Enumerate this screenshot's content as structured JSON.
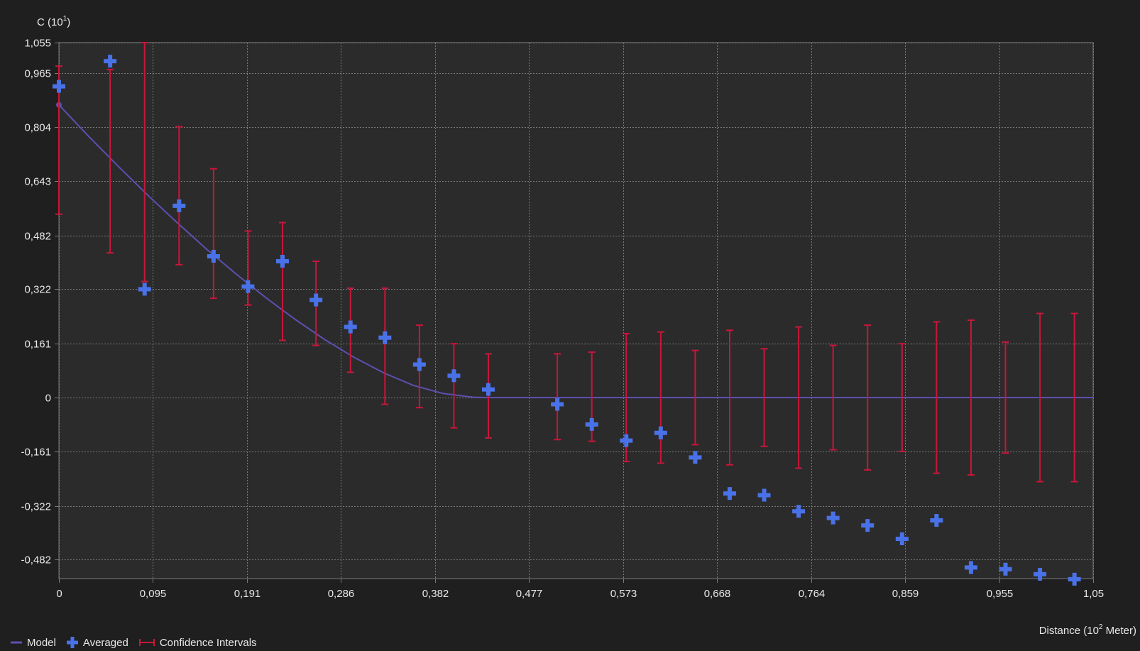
{
  "colors": {
    "background": "#1f1f1f",
    "plot_background": "#2b2b2b",
    "grid": "#7a7a7a",
    "model": "#5d4fb0",
    "averaged": "#4a72e8",
    "confidence": "#c8163a",
    "text": "#e8e8e8"
  },
  "legend": {
    "model": "Model",
    "averaged": "Averaged",
    "confidence": "Confidence Intervals"
  },
  "chart_data": {
    "type": "scatter",
    "ylabel_base": "C (10",
    "ylabel_exp": "1",
    "ylabel_end": ")",
    "xlabel_base": "Distance (10",
    "xlabel_exp": "2",
    "xlabel_end": " Meter)",
    "xlim": [
      0,
      1.05
    ],
    "ylim": [
      -0.54,
      1.055
    ],
    "x_ticks": [
      0,
      0.095,
      0.191,
      0.286,
      0.382,
      0.477,
      0.573,
      0.668,
      0.764,
      0.859,
      0.955,
      1.05
    ],
    "x_tick_labels": [
      "0",
      "0,095",
      "0,191",
      "0,286",
      "0,382",
      "0,477",
      "0,573",
      "0,668",
      "0,764",
      "0,859",
      "0,955",
      "1,05"
    ],
    "y_ticks": [
      1.055,
      0.965,
      0.804,
      0.643,
      0.482,
      0.322,
      0.161,
      0,
      -0.161,
      -0.322,
      -0.482
    ],
    "y_tick_labels": [
      "1,055",
      "0,965",
      "0,804",
      "0,643",
      "0,482",
      "0,322",
      "0,161",
      "0",
      "-0,161",
      "-0,322",
      "-0,482"
    ],
    "grid": true,
    "legend_position": "bottom-left",
    "series": [
      {
        "name": "Model",
        "type": "line",
        "x": [
          0,
          0.03,
          0.06,
          0.09,
          0.12,
          0.15,
          0.18,
          0.21,
          0.24,
          0.27,
          0.3,
          0.33,
          0.36,
          0.39,
          0.42,
          0.435,
          1.05
        ],
        "y": [
          0.87,
          0.777,
          0.688,
          0.602,
          0.52,
          0.441,
          0.367,
          0.297,
          0.232,
          0.172,
          0.119,
          0.073,
          0.036,
          0.012,
          0.001,
          0.0,
          0.0
        ]
      },
      {
        "name": "Averaged",
        "type": "scatter",
        "x": [
          0,
          0.052,
          0.087,
          0.122,
          0.157,
          0.192,
          0.227,
          0.261,
          0.296,
          0.331,
          0.366,
          0.401,
          0.436,
          0.506,
          0.541,
          0.576,
          0.611,
          0.646,
          0.681,
          0.716,
          0.751,
          0.786,
          0.821,
          0.856,
          0.891,
          0.926,
          0.961,
          0.996,
          1.031
        ],
        "y": [
          0.925,
          1.0,
          0.322,
          0.57,
          0.42,
          0.33,
          0.405,
          0.29,
          0.21,
          0.178,
          0.098,
          0.065,
          0.024,
          -0.02,
          -0.08,
          -0.128,
          -0.105,
          -0.178,
          -0.285,
          -0.29,
          -0.338,
          -0.358,
          -0.38,
          -0.42,
          -0.365,
          -0.505,
          -0.51,
          -0.525,
          -0.54
        ]
      },
      {
        "name": "Confidence Intervals",
        "type": "errorbar",
        "x": [
          0,
          0.052,
          0.087,
          0.122,
          0.157,
          0.192,
          0.227,
          0.261,
          0.296,
          0.331,
          0.366,
          0.401,
          0.436,
          0.506,
          0.541,
          0.576,
          0.611,
          0.646,
          0.681,
          0.716,
          0.751,
          0.786,
          0.821,
          0.856,
          0.891,
          0.926,
          0.961,
          0.996,
          1.031
        ],
        "low": [
          0.545,
          0.43,
          0.345,
          0.395,
          0.295,
          0.275,
          0.17,
          0.155,
          0.075,
          -0.02,
          -0.03,
          -0.09,
          -0.12,
          -0.125,
          -0.13,
          -0.19,
          -0.195,
          -0.14,
          -0.2,
          -0.145,
          -0.21,
          -0.155,
          -0.215,
          -0.16,
          -0.225,
          -0.23,
          -0.165,
          -0.25,
          -0.25
        ],
        "high": [
          0.985,
          0.975,
          1.055,
          0.805,
          0.68,
          0.495,
          0.52,
          0.405,
          0.325,
          0.325,
          0.215,
          0.16,
          0.13,
          0.13,
          0.135,
          0.19,
          0.195,
          0.14,
          0.2,
          0.145,
          0.21,
          0.155,
          0.215,
          0.16,
          0.225,
          0.23,
          0.165,
          0.25,
          0.25
        ]
      }
    ]
  }
}
